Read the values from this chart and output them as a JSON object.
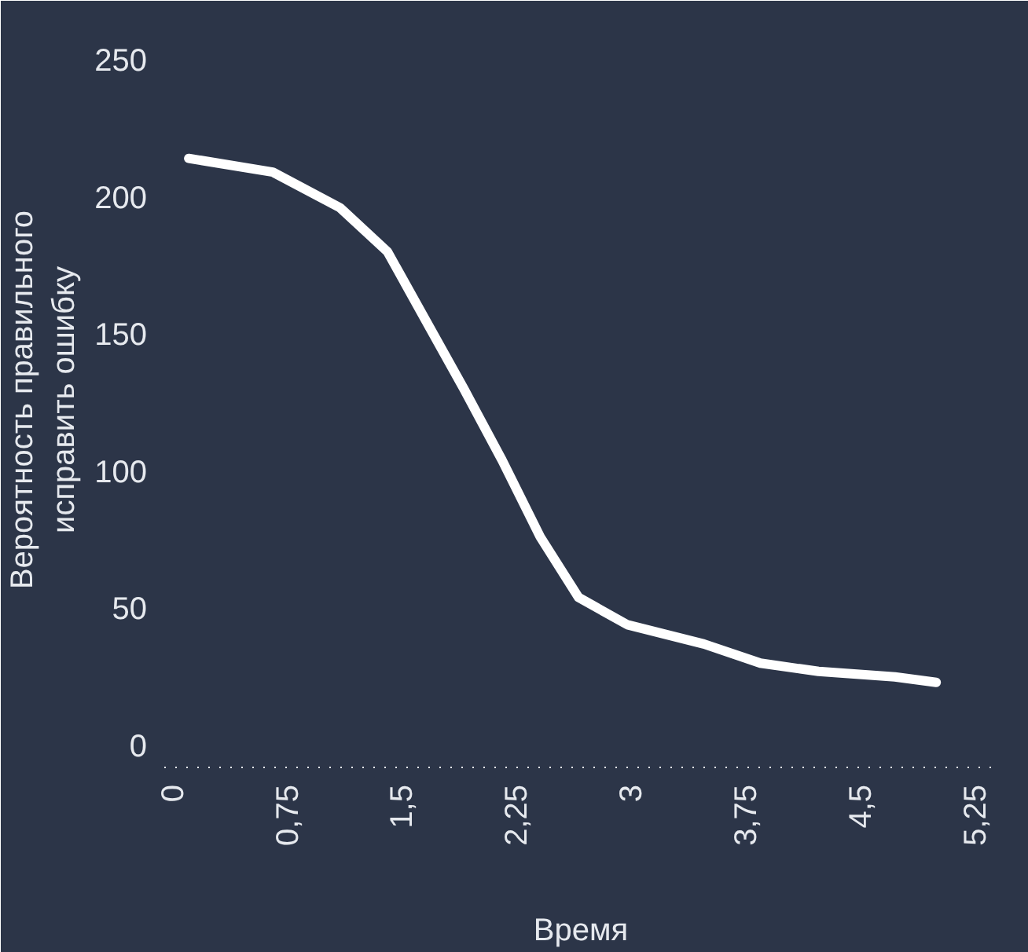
{
  "chart_data": {
    "type": "line",
    "xlabel": "Время",
    "ylabel": "Вероятность правильного\nисправить ошибку",
    "x": [
      0.11,
      0.66,
      1.1,
      1.41,
      1.66,
      1.91,
      2.16,
      2.41,
      2.66,
      2.98,
      3.48,
      3.85,
      4.23,
      4.73,
      5.0
    ],
    "series": [
      {
        "color": "#ffffff",
        "values": [
          214,
          209,
          196,
          180,
          155,
          130,
          104,
          76,
          54,
          44,
          37,
          30,
          27,
          25,
          23
        ]
      }
    ],
    "xlim": [
      -0.05,
      5.4
    ],
    "ylim": [
      -8,
      260
    ],
    "xticks": [
      0,
      {
        "value": 0.75,
        "label": "0,75"
      },
      {
        "value": 1.5,
        "label": "1,5"
      },
      {
        "value": 2.25,
        "label": "2,25"
      },
      3,
      {
        "value": 3.75,
        "label": "3,75"
      },
      {
        "value": 4.5,
        "label": "4,5"
      },
      {
        "value": 5.25,
        "label": "5,25"
      }
    ],
    "yticks": [
      0,
      50,
      100,
      150,
      200,
      250
    ],
    "grid": false,
    "line_style": "solid"
  }
}
